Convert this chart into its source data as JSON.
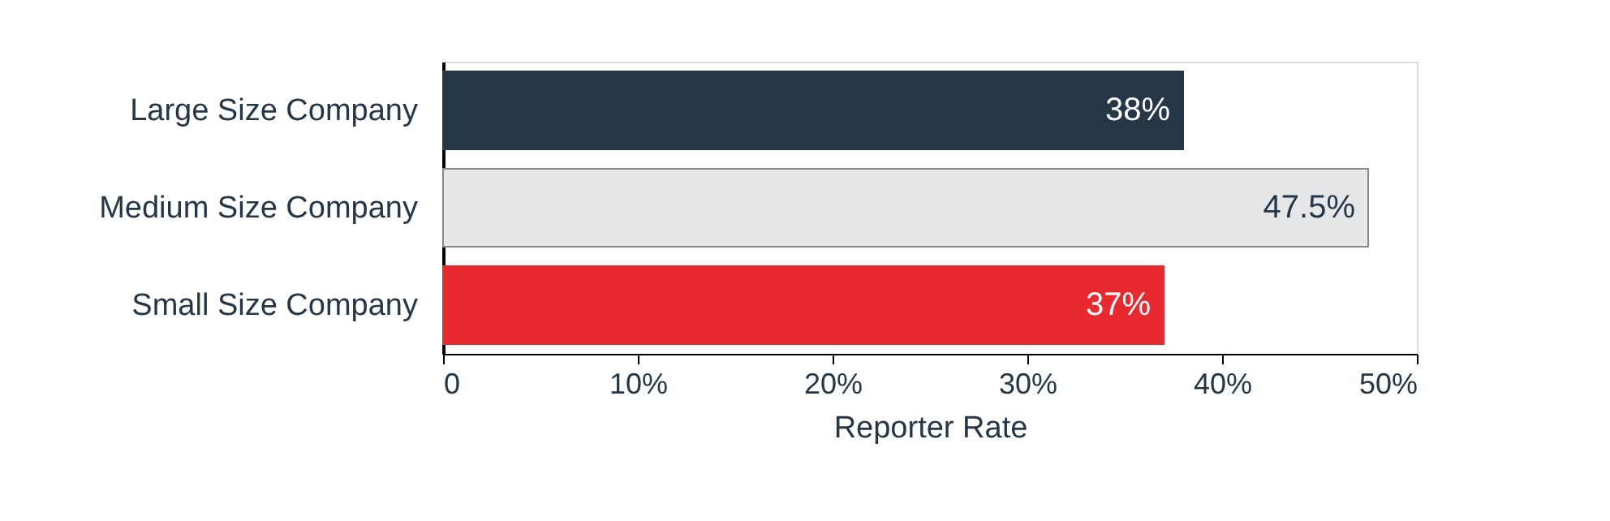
{
  "chart_data": {
    "type": "bar",
    "orientation": "horizontal",
    "categories": [
      "Large Size Company",
      "Medium Size Company",
      "Small Size Company"
    ],
    "values": [
      38,
      47.5,
      37
    ],
    "colors": [
      "#253746",
      "#e6e7e8",
      "#e8292f"
    ],
    "value_labels": [
      "38%",
      "47.5%",
      "37%"
    ],
    "xlabel": "Reporter Rate",
    "xlim": [
      0,
      50
    ],
    "xticks": [
      0,
      {
        "value": 10,
        "label": "10%"
      },
      {
        "value": 20,
        "label": "20%"
      },
      {
        "value": 30,
        "label": "30%"
      },
      {
        "value": 40,
        "label": "40%"
      },
      {
        "value": 50,
        "label": "50%"
      }
    ],
    "grid": false
  }
}
